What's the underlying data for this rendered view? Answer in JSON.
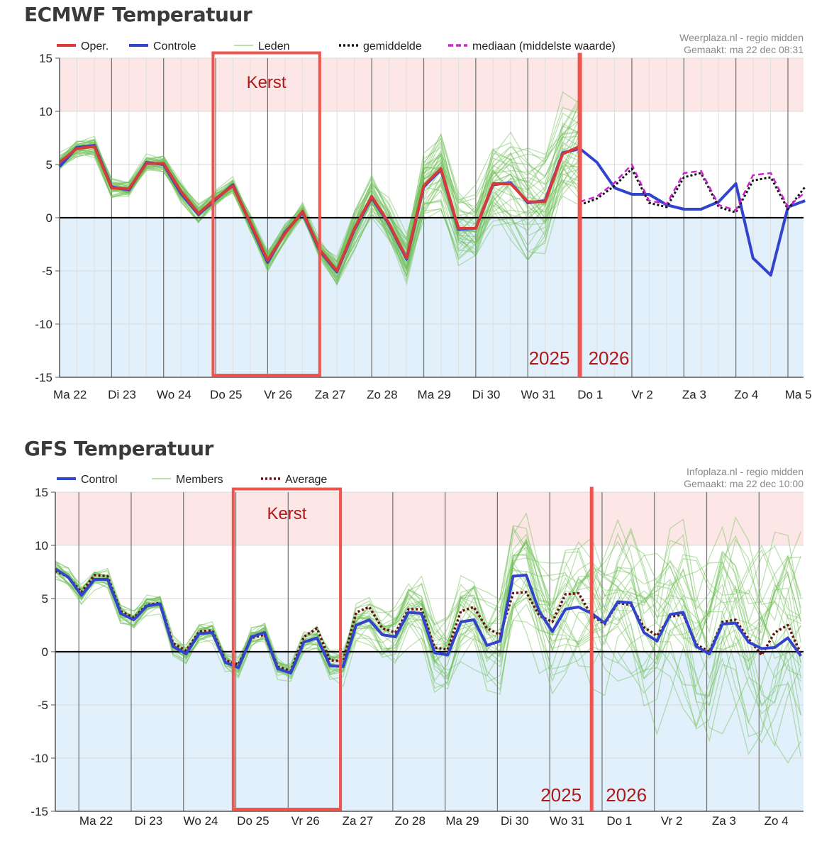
{
  "chart_data": [
    {
      "type": "line",
      "title": "ECMWF Temperatuur",
      "source_line1": "Weerplaza.nl - regio midden",
      "source_line2": "Gemaakt: ma 22 dec 08:31",
      "ylim": [
        -15,
        15
      ],
      "yticks": [
        "15",
        "10",
        "5",
        "0",
        "-5",
        "-10",
        "-15"
      ],
      "xlim": [
        0,
        14.3
      ],
      "categories": [
        "Ma 22",
        "Di 23",
        "Wo 24",
        "Do 25",
        "Vr 26",
        "Za 27",
        "Zo 28",
        "Ma 29",
        "Di 30",
        "Wo 31",
        "Do 1",
        "Vr 2",
        "Za 3",
        "Zo 4",
        "Ma 5"
      ],
      "legend": [
        {
          "label": "Oper.",
          "style": "thick",
          "color": "#d63a3a"
        },
        {
          "label": "Controle",
          "style": "thick",
          "color": "#3344cc"
        },
        {
          "label": "Leden",
          "style": "thin",
          "color": "#8fce7c"
        },
        {
          "label": "gemiddelde",
          "style": "dotted",
          "color": "#111111"
        },
        {
          "label": "mediaan (middelste waarde)",
          "style": "dashed",
          "color": "#cc22cc"
        }
      ],
      "highlight": {
        "label": "Kerst",
        "x0": 2.95,
        "x1": 5.0,
        "y0": 15.5,
        "y1": -14.8
      },
      "year_divider": {
        "x": 10.0,
        "left_label": "2025",
        "right_label": "2026"
      },
      "series": [
        {
          "name": "Oper.",
          "color": "#d63a3a",
          "x": [
            0,
            0.33,
            0.67,
            1,
            1.33,
            1.67,
            2,
            2.33,
            2.67,
            3,
            3.33,
            3.67,
            4,
            4.33,
            4.67,
            5,
            5.33,
            5.67,
            6,
            6.33,
            6.67,
            7,
            7.33,
            7.67,
            8,
            8.33,
            8.67,
            9,
            9.33,
            9.67,
            10
          ],
          "values": [
            5.2,
            6.5,
            6.7,
            2.8,
            2.7,
            5.1,
            5.1,
            2.5,
            0.4,
            1.8,
            3.0,
            -0.5,
            -4.0,
            -1.5,
            0.6,
            -3.0,
            -5.0,
            -1.0,
            2.0,
            -0.5,
            -3.8,
            3.0,
            4.6,
            -1.0,
            -1.0,
            3.2,
            3.2,
            1.5,
            1.5,
            6.0,
            6.7
          ]
        },
        {
          "name": "Controle",
          "color": "#3344cc",
          "x": [
            0,
            0.33,
            0.67,
            1,
            1.33,
            1.67,
            2,
            2.33,
            2.67,
            3,
            3.33,
            3.67,
            4,
            4.33,
            4.67,
            5,
            5.33,
            5.67,
            6,
            6.33,
            6.67,
            7,
            7.33,
            7.67,
            8,
            8.33,
            8.67,
            9,
            9.33,
            9.67,
            10,
            10.33,
            10.67,
            11,
            11.33,
            11.67,
            12,
            12.33,
            12.67,
            13,
            13.33,
            13.67,
            14,
            14.33
          ],
          "values": [
            4.8,
            6.6,
            6.8,
            2.9,
            2.6,
            5.2,
            5.0,
            2.3,
            0.3,
            1.7,
            3.1,
            -0.6,
            -4.2,
            -1.4,
            0.5,
            -3.1,
            -5.1,
            -1.1,
            1.9,
            -0.6,
            -3.9,
            2.9,
            4.5,
            -1.1,
            -1.0,
            3.1,
            3.3,
            1.4,
            1.6,
            6.1,
            6.5,
            5.2,
            2.8,
            2.2,
            2.2,
            1.2,
            0.8,
            0.8,
            1.5,
            3.2,
            -3.8,
            -5.4,
            1.0,
            1.6
          ]
        },
        {
          "name": "gemiddelde",
          "color": "#111111",
          "x": [
            10,
            10.33,
            10.67,
            11,
            11.33,
            11.67,
            12,
            12.33,
            12.67,
            13,
            13.33,
            13.67,
            14,
            14.33
          ],
          "values": [
            1.2,
            1.8,
            3.0,
            4.6,
            1.4,
            1.0,
            3.8,
            4.2,
            1.0,
            0.5,
            3.5,
            3.8,
            0.8,
            2.9
          ]
        },
        {
          "name": "mediaan (middelste waarde)",
          "color": "#cc22cc",
          "x": [
            10,
            10.33,
            10.67,
            11,
            11.33,
            11.67,
            12,
            12.33,
            12.67,
            13,
            13.33,
            13.67,
            14,
            14.33
          ],
          "values": [
            1.5,
            2.0,
            3.3,
            5.0,
            1.6,
            1.3,
            4.2,
            4.4,
            1.2,
            0.7,
            4.0,
            4.2,
            1.0,
            2.4
          ]
        }
      ]
    },
    {
      "type": "line",
      "title": "GFS Temperatuur",
      "source_line1": "Infoplaza.nl - regio midden",
      "source_line2": "Gemaakt: ma 22 dec 10:00",
      "ylim": [
        -15,
        15
      ],
      "yticks": [
        "15",
        "10",
        "5",
        "0",
        "-5",
        "-10",
        "-15"
      ],
      "xlim": [
        0,
        14.3
      ],
      "categories": [
        "Ma 22",
        "Di 23",
        "Wo 24",
        "Do 25",
        "Vr 26",
        "Za 27",
        "Zo 28",
        "Ma 29",
        "Di 30",
        "Wo 31",
        "Do 1",
        "Vr 2",
        "Za 3",
        "Zo 4"
      ],
      "legend": [
        {
          "label": "Control",
          "style": "thick",
          "color": "#3344cc"
        },
        {
          "label": "Members",
          "style": "thin",
          "color": "#8fce7c"
        },
        {
          "label": "Average",
          "style": "dotted",
          "color": "#661111"
        }
      ],
      "highlight": {
        "label": "Kerst",
        "x0": 3.4,
        "x1": 5.45,
        "y0": 15.3,
        "y1": -14.8
      },
      "year_divider": {
        "x": 10.25,
        "left_label": "2025",
        "right_label": "2026"
      },
      "series": [
        {
          "name": "Control",
          "color": "#3344cc",
          "x": [
            0,
            0.25,
            0.5,
            0.75,
            1.0,
            1.25,
            1.5,
            1.75,
            2.0,
            2.25,
            2.5,
            2.75,
            3.0,
            3.25,
            3.5,
            3.75,
            4.0,
            4.25,
            4.5,
            4.75,
            5.0,
            5.25,
            5.5,
            5.75,
            6.0,
            6.25,
            6.5,
            6.75,
            7.0,
            7.25,
            7.5,
            7.75,
            8.0,
            8.25,
            8.5,
            8.75,
            9.0,
            9.25,
            9.5,
            9.75,
            10.0,
            10.25,
            10.5,
            10.75,
            11.0,
            11.25,
            11.5,
            11.75,
            12.0,
            12.25,
            12.5,
            12.75,
            13.0,
            13.25,
            13.5,
            13.75,
            14.0,
            14.25
          ],
          "values": [
            7.8,
            7.0,
            5.3,
            6.8,
            6.8,
            3.6,
            3.0,
            4.3,
            4.5,
            0.5,
            -0.2,
            1.7,
            1.8,
            -1.0,
            -1.5,
            1.4,
            1.8,
            -1.6,
            -2.0,
            0.9,
            1.3,
            -1.3,
            -1.4,
            2.5,
            3.0,
            1.6,
            1.4,
            3.7,
            3.6,
            -0.1,
            -0.3,
            2.8,
            3.0,
            0.6,
            1.0,
            7.1,
            7.2,
            3.8,
            1.9,
            4.0,
            4.2,
            3.6,
            2.7,
            4.7,
            4.6,
            1.8,
            1.0,
            3.5,
            3.7,
            0.5,
            -0.2,
            2.6,
            2.7,
            0.9,
            0.3,
            0.4,
            1.3,
            -0.4
          ]
        },
        {
          "name": "Average",
          "color": "#661111",
          "x": [
            0,
            0.25,
            0.5,
            0.75,
            1.0,
            1.25,
            1.5,
            1.75,
            2.0,
            2.25,
            2.5,
            2.75,
            3.0,
            3.25,
            3.5,
            3.75,
            4.0,
            4.25,
            4.5,
            4.75,
            5.0,
            5.25,
            5.5,
            5.75,
            6.0,
            6.25,
            6.5,
            6.75,
            7.0,
            7.25,
            7.5,
            7.75,
            8.0,
            8.25,
            8.5,
            8.75,
            9.0,
            9.25,
            9.5,
            9.75,
            10.0,
            10.25,
            10.5,
            10.75,
            11.0,
            11.25,
            11.5,
            11.75,
            12.0,
            12.25,
            12.5,
            12.75,
            13.0,
            13.25,
            13.5,
            13.75,
            14.0,
            14.25
          ],
          "values": [
            7.6,
            7.0,
            5.6,
            7.2,
            7.1,
            3.8,
            3.2,
            4.4,
            4.6,
            0.8,
            0.1,
            1.9,
            2.0,
            -0.8,
            -1.2,
            1.3,
            1.6,
            -1.4,
            -1.8,
            1.4,
            2.2,
            -0.8,
            -0.9,
            3.7,
            4.2,
            2.2,
            1.8,
            4.0,
            4.0,
            0.4,
            0.2,
            3.8,
            4.2,
            2.2,
            1.6,
            5.5,
            5.6,
            3.4,
            2.8,
            5.4,
            5.5,
            3.4,
            2.6,
            4.6,
            4.4,
            2.3,
            1.5,
            3.3,
            3.5,
            0.7,
            0.0,
            2.8,
            3.0,
            1.2,
            -0.3,
            1.8,
            2.5,
            -0.2
          ]
        }
      ]
    }
  ]
}
